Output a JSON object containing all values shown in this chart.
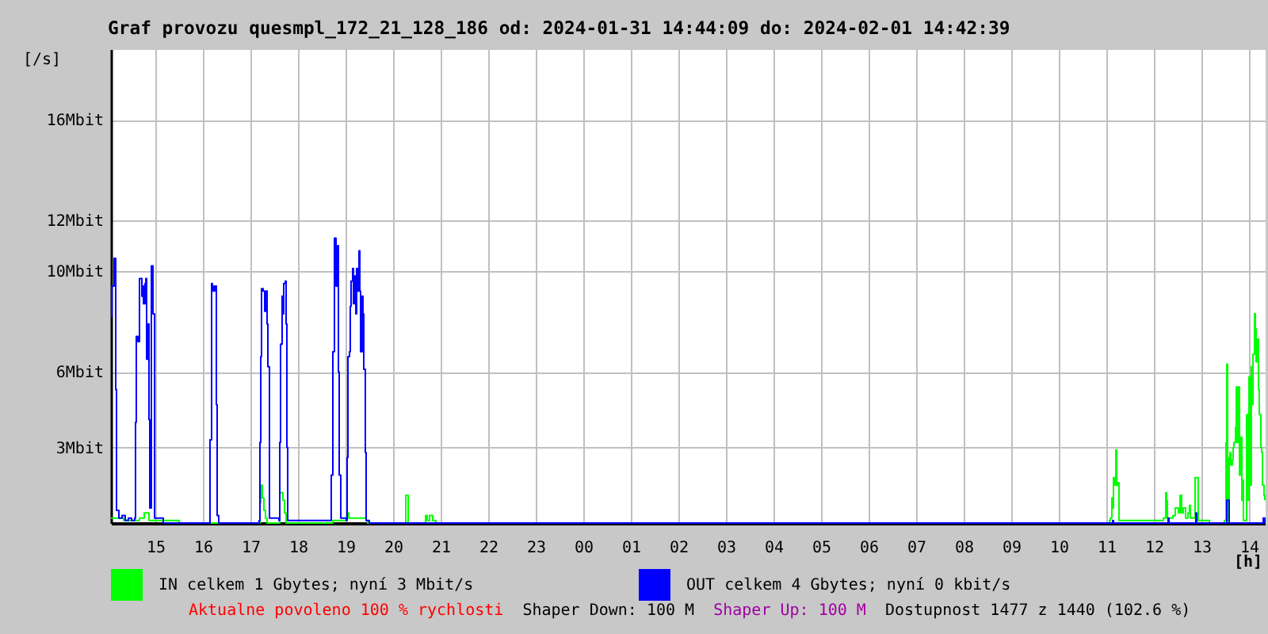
{
  "chart_data": {
    "type": "step",
    "title": "Graf provozu quesmpl_172_21_128_186 od: 2024-01-31 14:44:09 do: 2024-02-01 14:42:39",
    "xlabel": "[h]",
    "ylabel": "[/s]",
    "series": [
      {
        "name": "IN celkem 1 Gbytes; nyní 3 Mbit/s",
        "color": "#00ff00",
        "x": [
          "2024-01-31T14:04",
          "2024-01-31T14:20",
          "2024-01-31T14:40",
          "2024-01-31T14:46",
          "2024-01-31T14:52",
          "2024-01-31T14:58",
          "2024-01-31T15:30",
          "2024-01-31T17:10",
          "2024-01-31T17:12",
          "2024-01-31T17:13",
          "2024-01-31T17:14",
          "2024-01-31T17:15",
          "2024-01-31T17:17",
          "2024-01-31T17:19",
          "2024-01-31T17:21",
          "2024-01-31T17:36",
          "2024-01-31T17:37",
          "2024-01-31T17:39",
          "2024-01-31T17:41",
          "2024-01-31T17:43",
          "2024-01-31T17:45",
          "2024-01-31T18:44",
          "2024-01-31T18:52",
          "2024-01-31T19:02",
          "2024-01-31T19:04",
          "2024-01-31T19:26",
          "2024-01-31T19:28",
          "2024-01-31T20:15",
          "2024-01-31T20:16",
          "2024-01-31T20:18",
          "2024-01-31T20:19",
          "2024-01-31T20:40",
          "2024-01-31T20:41",
          "2024-01-31T20:43",
          "2024-01-31T20:46",
          "2024-01-31T20:48",
          "2024-01-31T20:50",
          "2024-01-31T20:54",
          "2024-02-01T11:04",
          "2024-02-01T11:05",
          "2024-02-01T11:07",
          "2024-02-01T11:08",
          "2024-02-01T11:09",
          "2024-02-01T11:11",
          "2024-02-01T11:12",
          "2024-02-01T11:13",
          "2024-02-01T11:15",
          "2024-02-01T11:16",
          "2024-02-01T12:11",
          "2024-02-01T12:12",
          "2024-02-01T12:15",
          "2024-02-01T12:16",
          "2024-02-01T12:17",
          "2024-02-01T12:21",
          "2024-02-01T12:24",
          "2024-02-01T12:27",
          "2024-02-01T12:31",
          "2024-02-01T12:33",
          "2024-02-01T12:35",
          "2024-02-01T12:37",
          "2024-02-01T12:40",
          "2024-02-01T12:43",
          "2024-02-01T12:45",
          "2024-02-01T12:46",
          "2024-02-01T12:49",
          "2024-02-01T12:52",
          "2024-02-01T12:55",
          "2024-02-01T12:56",
          "2024-02-01T13:10",
          "2024-02-01T13:29",
          "2024-02-01T13:31",
          "2024-02-01T13:32",
          "2024-02-01T13:33",
          "2024-02-01T13:35",
          "2024-02-01T13:36",
          "2024-02-01T13:37",
          "2024-02-01T13:39",
          "2024-02-01T13:40",
          "2024-02-01T13:41",
          "2024-02-01T13:43",
          "2024-02-01T13:44",
          "2024-02-01T13:45",
          "2024-02-01T13:47",
          "2024-02-01T13:48",
          "2024-02-01T13:49",
          "2024-02-01T13:51",
          "2024-02-01T13:52",
          "2024-02-01T13:53",
          "2024-02-01T13:56",
          "2024-02-01T13:57",
          "2024-02-01T13:59",
          "2024-02-01T14:00",
          "2024-02-01T14:01",
          "2024-02-01T14:03",
          "2024-02-01T14:04",
          "2024-02-01T14:05",
          "2024-02-01T14:07",
          "2024-02-01T14:08",
          "2024-02-01T14:09",
          "2024-02-01T14:11",
          "2024-02-01T14:12",
          "2024-02-01T14:13",
          "2024-02-01T14:15",
          "2024-02-01T14:16",
          "2024-02-01T14:17",
          "2024-02-01T14:19",
          "2024-02-01T14:20"
        ],
        "values": [
          0.2,
          0.1,
          0.2,
          0.4,
          0.1,
          0.1,
          0.0,
          0.0,
          0.8,
          1.5,
          1.5,
          1.0,
          0.5,
          0.2,
          0.0,
          0.0,
          1.2,
          1.2,
          0.9,
          0.4,
          0.0,
          0.1,
          0.1,
          0.4,
          0.2,
          0.1,
          0.0,
          0.0,
          1.1,
          1.1,
          0.0,
          0.0,
          0.3,
          0.1,
          0.3,
          0.3,
          0.1,
          0.0,
          0.1,
          0.2,
          1.0,
          0.6,
          1.8,
          1.5,
          2.9,
          1.5,
          1.6,
          0.1,
          0.1,
          0.2,
          1.2,
          0.9,
          0.2,
          0.2,
          0.3,
          0.6,
          0.4,
          1.1,
          0.4,
          0.6,
          0.2,
          0.4,
          0.7,
          0.2,
          0.2,
          1.8,
          1.8,
          0.1,
          0.0,
          0.1,
          3.2,
          6.3,
          0.1,
          2.6,
          2.8,
          2.3,
          2.5,
          3.0,
          3.2,
          3.8,
          5.4,
          3.2,
          5.4,
          1.9,
          3.4,
          0.9,
          1.7,
          0.1,
          0.1,
          4.3,
          0.9,
          5.8,
          1.5,
          6.2,
          4.7,
          6.7,
          8.3,
          7.7,
          6.4,
          7.3,
          5.3,
          4.3,
          3.0,
          2.8,
          1.5,
          1.1,
          0.9
        ]
      },
      {
        "name": "OUT celkem 4 Gbytes; nyní 0 kbit/s",
        "color": "#0000ff",
        "x": [
          "2024-01-31T14:04",
          "2024-01-31T14:05",
          "2024-01-31T14:08",
          "2024-01-31T14:10",
          "2024-01-31T14:11",
          "2024-01-31T14:14",
          "2024-01-31T14:18",
          "2024-01-31T14:22",
          "2024-01-31T14:26",
          "2024-01-31T14:30",
          "2024-01-31T14:34",
          "2024-01-31T14:35",
          "2024-01-31T14:36",
          "2024-01-31T14:38",
          "2024-01-31T14:40",
          "2024-01-31T14:41",
          "2024-01-31T14:43",
          "2024-01-31T14:44",
          "2024-01-31T14:45",
          "2024-01-31T14:47",
          "2024-01-31T14:48",
          "2024-01-31T14:49",
          "2024-01-31T14:51",
          "2024-01-31T14:52",
          "2024-01-31T14:53",
          "2024-01-31T14:55",
          "2024-01-31T14:57",
          "2024-01-31T14:59",
          "2024-01-31T15:10",
          "2024-01-31T16:08",
          "2024-01-31T16:09",
          "2024-01-31T16:11",
          "2024-01-31T16:12",
          "2024-01-31T16:13",
          "2024-01-31T16:15",
          "2024-01-31T16:17",
          "2024-01-31T16:18",
          "2024-01-31T16:20",
          "2024-01-31T17:11",
          "2024-01-31T17:12",
          "2024-01-31T17:13",
          "2024-01-31T17:14",
          "2024-01-31T17:16",
          "2024-01-31T17:18",
          "2024-01-31T17:20",
          "2024-01-31T17:21",
          "2024-01-31T17:22",
          "2024-01-31T17:24",
          "2024-01-31T17:36",
          "2024-01-31T17:37",
          "2024-01-31T17:38",
          "2024-01-31T17:40",
          "2024-01-31T17:41",
          "2024-01-31T17:42",
          "2024-01-31T17:44",
          "2024-01-31T17:45",
          "2024-01-31T17:46",
          "2024-01-31T17:47",
          "2024-01-31T18:41",
          "2024-01-31T18:42",
          "2024-01-31T18:44",
          "2024-01-31T18:46",
          "2024-01-31T18:47",
          "2024-01-31T18:48",
          "2024-01-31T18:50",
          "2024-01-31T18:51",
          "2024-01-31T18:52",
          "2024-01-31T18:54",
          "2024-01-31T19:01",
          "2024-01-31T19:02",
          "2024-01-31T19:03",
          "2024-01-31T19:05",
          "2024-01-31T19:06",
          "2024-01-31T19:07",
          "2024-01-31T19:09",
          "2024-01-31T19:10",
          "2024-01-31T19:11",
          "2024-01-31T19:13",
          "2024-01-31T19:14",
          "2024-01-31T19:15",
          "2024-01-31T19:17",
          "2024-01-31T19:18",
          "2024-01-31T19:19",
          "2024-01-31T19:21",
          "2024-01-31T19:22",
          "2024-01-31T19:23",
          "2024-01-31T19:25",
          "2024-01-31T19:26",
          "2024-01-31T19:30",
          "2024-02-01T11:07",
          "2024-02-01T11:08",
          "2024-02-01T11:09",
          "2024-02-01T12:17",
          "2024-02-01T12:18",
          "2024-02-01T12:19",
          "2024-02-01T12:52",
          "2024-02-01T12:53",
          "2024-02-01T12:54",
          "2024-02-01T13:31",
          "2024-02-01T13:32",
          "2024-02-01T13:34",
          "2024-02-01T13:35",
          "2024-02-01T14:17",
          "2024-02-01T14:18",
          "2024-02-01T14:20"
        ],
        "values": [
          8.2,
          9.4,
          10.5,
          5.3,
          0.5,
          0.2,
          0.3,
          0.1,
          0.2,
          0.1,
          0.2,
          4.0,
          7.4,
          7.2,
          9.7,
          9.7,
          9.0,
          9.4,
          8.7,
          9.5,
          9.7,
          6.5,
          7.9,
          4.1,
          0.6,
          10.2,
          8.3,
          0.2,
          0.0,
          0.0,
          3.3,
          9.5,
          9.4,
          9.2,
          9.4,
          4.7,
          0.3,
          0.0,
          0.1,
          3.2,
          6.6,
          9.3,
          9.2,
          8.4,
          9.2,
          7.9,
          6.2,
          0.2,
          0.1,
          3.2,
          7.1,
          9.0,
          8.3,
          9.5,
          9.6,
          7.9,
          3.0,
          0.1,
          0.1,
          1.9,
          6.8,
          11.3,
          11.3,
          9.4,
          11.0,
          6.0,
          1.9,
          0.2,
          0.1,
          2.6,
          6.6,
          6.8,
          8.6,
          9.6,
          10.1,
          8.7,
          9.8,
          8.3,
          10.1,
          9.2,
          10.8,
          9.2,
          6.8,
          9.0,
          8.3,
          6.1,
          2.8,
          0.1,
          0.0,
          0.0,
          0.1,
          0.0,
          0.0,
          0.2,
          0.0,
          0.0,
          0.4,
          0.0,
          0.0,
          0.9,
          0.9,
          0.0,
          0.0,
          0.2,
          0.0
        ]
      }
    ],
    "xlim": [
      "2024-01-31T14:04",
      "2024-02-01T14:20"
    ],
    "xticks": [
      {
        "value": "2024-01-31T15:00",
        "label": "15"
      },
      {
        "value": "2024-01-31T16:00",
        "label": "16"
      },
      {
        "value": "2024-01-31T17:00",
        "label": "17"
      },
      {
        "value": "2024-01-31T18:00",
        "label": "18"
      },
      {
        "value": "2024-01-31T19:00",
        "label": "19"
      },
      {
        "value": "2024-01-31T20:00",
        "label": "20"
      },
      {
        "value": "2024-01-31T21:00",
        "label": "21"
      },
      {
        "value": "2024-01-31T22:00",
        "label": "22"
      },
      {
        "value": "2024-01-31T23:00",
        "label": "23"
      },
      {
        "value": "2024-02-01T00:00",
        "label": "00"
      },
      {
        "value": "2024-02-01T01:00",
        "label": "01"
      },
      {
        "value": "2024-02-01T02:00",
        "label": "02"
      },
      {
        "value": "2024-02-01T03:00",
        "label": "03"
      },
      {
        "value": "2024-02-01T04:00",
        "label": "04"
      },
      {
        "value": "2024-02-01T05:00",
        "label": "05"
      },
      {
        "value": "2024-02-01T06:00",
        "label": "06"
      },
      {
        "value": "2024-02-01T07:00",
        "label": "07"
      },
      {
        "value": "2024-02-01T08:00",
        "label": "08"
      },
      {
        "value": "2024-02-01T09:00",
        "label": "09"
      },
      {
        "value": "2024-02-01T10:00",
        "label": "10"
      },
      {
        "value": "2024-02-01T11:00",
        "label": "11"
      },
      {
        "value": "2024-02-01T12:00",
        "label": "12"
      },
      {
        "value": "2024-02-01T13:00",
        "label": "13"
      },
      {
        "value": "2024-02-01T14:00",
        "label": "14"
      }
    ],
    "ylim": [
      0,
      18.8
    ],
    "yticks": [
      {
        "value": 3,
        "label": "3Mbit"
      },
      {
        "value": 6,
        "label": "6Mbit"
      },
      {
        "value": 10,
        "label": "10Mbit"
      },
      {
        "value": 12,
        "label": "12Mbit"
      },
      {
        "value": 16,
        "label": "16Mbit"
      }
    ],
    "grid": true,
    "legend": "bottom",
    "annotations": [
      "Aktualne povoleno 100 % rychlosti",
      "Shaper Down: 100 M",
      "Shaper Up: 100 M",
      "Dostupnost 1477 z 1440 (102.6 %)"
    ]
  }
}
